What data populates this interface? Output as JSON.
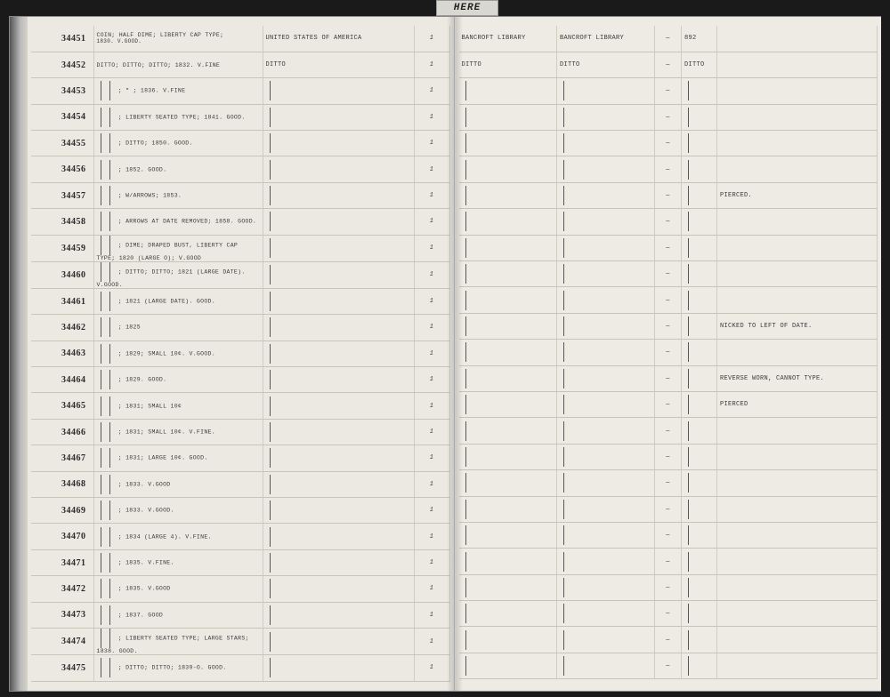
{
  "tab_label": "HERE",
  "left_cols": [
    70,
    190,
    170,
    40
  ],
  "right_cols": [
    110,
    110,
    30,
    40,
    180
  ],
  "rows": [
    {
      "id": "34451",
      "desc": "Coin; half dime; Liberty cap type;",
      "origin": "United States of America",
      "qty": "1",
      "owner1": "Bancroft Library",
      "owner2": "Bancroft Library",
      "dash": "—",
      "yr": "892",
      "note": "",
      "sub": "1830. V.Good."
    },
    {
      "id": "34452",
      "desc": "Ditto; ditto; ditto; 1832. V.Fine",
      "origin": "Ditto",
      "qty": "1",
      "owner1": "Ditto",
      "owner2": "Ditto",
      "dash": "—",
      "yr": "Ditto",
      "note": ""
    },
    {
      "id": "34453",
      "desc": "\"  ; 1836. V.Fine",
      "origin": "",
      "qty": "1",
      "owner1": "",
      "owner2": "",
      "dash": "—",
      "yr": "",
      "note": ""
    },
    {
      "id": "34454",
      "desc": "Liberty seated type; 1841. Good.",
      "origin": "",
      "qty": "1",
      "owner1": "",
      "owner2": "",
      "dash": "—",
      "yr": "",
      "note": ""
    },
    {
      "id": "34455",
      "desc": "Ditto; 1850. Good.",
      "origin": "",
      "qty": "1",
      "owner1": "",
      "owner2": "",
      "dash": "—",
      "yr": "",
      "note": ""
    },
    {
      "id": "34456",
      "desc": "1852. Good.",
      "origin": "",
      "qty": "1",
      "owner1": "",
      "owner2": "",
      "dash": "—",
      "yr": "",
      "note": ""
    },
    {
      "id": "34457",
      "desc": "w/arrows; 1853.",
      "origin": "",
      "qty": "1",
      "owner1": "",
      "owner2": "",
      "dash": "—",
      "yr": "",
      "note": "Pierced."
    },
    {
      "id": "34458",
      "desc": "Arrows at date removed; 1858. Good.",
      "origin": "",
      "qty": "1",
      "owner1": "",
      "owner2": "",
      "dash": "—",
      "yr": "",
      "note": ""
    },
    {
      "id": "34459",
      "desc": "Dime; draped bust, Liberty cap type; 1820 (large O); V.Good",
      "origin": "",
      "qty": "1",
      "owner1": "",
      "owner2": "",
      "dash": "—",
      "yr": "",
      "note": ""
    },
    {
      "id": "34460",
      "desc": "Ditto; ditto; 1821 (large date). V.Good.",
      "origin": "",
      "qty": "1",
      "owner1": "",
      "owner2": "",
      "dash": "—",
      "yr": "",
      "note": ""
    },
    {
      "id": "34461",
      "desc": "1821 (large date). Good.",
      "origin": "",
      "qty": "1",
      "owner1": "",
      "owner2": "",
      "dash": "—",
      "yr": "",
      "note": ""
    },
    {
      "id": "34462",
      "desc": "1825",
      "origin": "",
      "qty": "1",
      "owner1": "",
      "owner2": "",
      "dash": "—",
      "yr": "",
      "note": "Nicked to left of date."
    },
    {
      "id": "34463",
      "desc": "1829; small 10¢. V.Good.",
      "origin": "",
      "qty": "1",
      "owner1": "",
      "owner2": "",
      "dash": "—",
      "yr": "",
      "note": ""
    },
    {
      "id": "34464",
      "desc": "1829. Good.",
      "origin": "",
      "qty": "1",
      "owner1": "",
      "owner2": "",
      "dash": "—",
      "yr": "",
      "note": "Reverse worn, cannot type."
    },
    {
      "id": "34465",
      "desc": "1831; small 10¢",
      "origin": "",
      "qty": "1",
      "owner1": "",
      "owner2": "",
      "dash": "—",
      "yr": "",
      "note": "Pierced"
    },
    {
      "id": "34466",
      "desc": "1831; small 10¢. V.Fine.",
      "origin": "",
      "qty": "1",
      "owner1": "",
      "owner2": "",
      "dash": "—",
      "yr": "",
      "note": ""
    },
    {
      "id": "34467",
      "desc": "1831; large 10¢. Good.",
      "origin": "",
      "qty": "1",
      "owner1": "",
      "owner2": "",
      "dash": "—",
      "yr": "",
      "note": ""
    },
    {
      "id": "34468",
      "desc": "1833. V.Good",
      "origin": "",
      "qty": "1",
      "owner1": "",
      "owner2": "",
      "dash": "—",
      "yr": "",
      "note": ""
    },
    {
      "id": "34469",
      "desc": "1833. V.Good.",
      "origin": "",
      "qty": "1",
      "owner1": "",
      "owner2": "",
      "dash": "—",
      "yr": "",
      "note": ""
    },
    {
      "id": "34470",
      "desc": "1834 (large 4). V.Fine.",
      "origin": "",
      "qty": "1",
      "owner1": "",
      "owner2": "",
      "dash": "—",
      "yr": "",
      "note": ""
    },
    {
      "id": "34471",
      "desc": "1835. V.Fine.",
      "origin": "",
      "qty": "1",
      "owner1": "",
      "owner2": "",
      "dash": "—",
      "yr": "",
      "note": ""
    },
    {
      "id": "34472",
      "desc": "1835. V.Good",
      "origin": "",
      "qty": "1",
      "owner1": "",
      "owner2": "",
      "dash": "—",
      "yr": "",
      "note": ""
    },
    {
      "id": "34473",
      "desc": "1837. Good",
      "origin": "",
      "qty": "1",
      "owner1": "",
      "owner2": "",
      "dash": "—",
      "yr": "",
      "note": ""
    },
    {
      "id": "34474",
      "desc": "Liberty seated type; large stars; 1838. Good.",
      "origin": "",
      "qty": "1",
      "owner1": "",
      "owner2": "",
      "dash": "—",
      "yr": "",
      "note": ""
    },
    {
      "id": "34475",
      "desc": "Ditto; ditto; 1839-O. Good.",
      "origin": "",
      "qty": "1",
      "owner1": "",
      "owner2": "",
      "dash": "—",
      "yr": "",
      "note": ""
    }
  ]
}
